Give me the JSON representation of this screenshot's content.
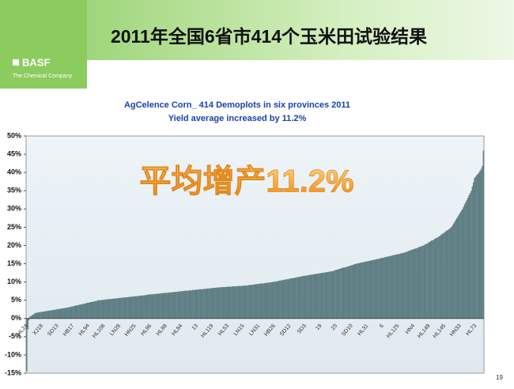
{
  "header": {
    "title": "2011年全国6省市414个玉米田试验结果",
    "logo": "BASF",
    "tagline": "The Chemical Company"
  },
  "page_number": "19",
  "chart_data": {
    "type": "bar",
    "title": "AgCelence Corn_ 414 Demoplots in six provinces 2011",
    "subtitle": "Yield average increased by 11.2%",
    "annotation": "平均增产11.2%",
    "color": "#5f7f84",
    "ylim": [
      -15,
      50
    ],
    "yticks": [
      {
        "value": -15,
        "label": "-15%"
      },
      {
        "value": -10,
        "label": "-10%"
      },
      {
        "value": -5,
        "label": "-5%"
      },
      {
        "value": 0,
        "label": "0%"
      },
      {
        "value": 5,
        "label": "5%"
      },
      {
        "value": 10,
        "label": "10%"
      },
      {
        "value": 15,
        "label": "15%"
      },
      {
        "value": 20,
        "label": "20%"
      },
      {
        "value": 25,
        "label": "25%"
      },
      {
        "value": 30,
        "label": "30%"
      },
      {
        "value": 35,
        "label": "35%"
      },
      {
        "value": 40,
        "label": "40%"
      },
      {
        "value": 45,
        "label": "45%"
      },
      {
        "value": 50,
        "label": "50%"
      }
    ],
    "categories": [
      "HL24",
      null,
      null,
      null,
      null,
      null,
      null,
      null,
      null,
      null,
      null,
      null,
      null,
      null,
      "XJ18",
      null,
      null,
      null,
      null,
      null,
      null,
      null,
      null,
      null,
      null,
      null,
      null,
      null,
      "SD13",
      null,
      null,
      null,
      null,
      null,
      null,
      null,
      null,
      null,
      null,
      null,
      null,
      null,
      "HB17",
      null,
      null,
      null,
      null,
      null,
      null,
      null,
      null,
      null,
      null,
      null,
      null,
      null,
      "HL94",
      null,
      null,
      null,
      null,
      null,
      null,
      null,
      null,
      null,
      null,
      null,
      null,
      null,
      "HL108",
      null,
      null,
      null,
      null,
      null,
      null,
      null,
      null,
      null,
      null,
      null,
      null,
      null,
      "LN28",
      null,
      null,
      null,
      null,
      null,
      null,
      null,
      null,
      null,
      null,
      null,
      null,
      null,
      "HN25",
      null,
      null,
      null,
      null,
      null,
      null,
      null,
      null,
      null,
      null,
      null,
      null,
      null,
      "HL86",
      null,
      null,
      null,
      null,
      null,
      null,
      null,
      null,
      null,
      null,
      null,
      null,
      null,
      "HL88",
      null,
      null,
      null,
      null,
      null,
      null,
      null,
      null,
      null,
      null,
      null,
      null,
      null,
      "HL84",
      null,
      null,
      null,
      null,
      null,
      null,
      null,
      null,
      null,
      null,
      null,
      null,
      null,
      "13",
      null,
      null,
      null,
      null,
      null,
      null,
      null,
      null,
      null,
      null,
      null,
      null,
      null,
      "HL119",
      null,
      null,
      null,
      null,
      null,
      null,
      null,
      null,
      null,
      null,
      null,
      null,
      null,
      "HL53",
      null,
      null,
      null,
      null,
      null,
      null,
      null,
      null,
      null,
      null,
      null,
      null,
      null,
      "LN15",
      null,
      null,
      null,
      null,
      null,
      null,
      null,
      null,
      null,
      null,
      null,
      null,
      null,
      "LN31",
      null,
      null,
      null,
      null,
      null,
      null,
      null,
      null,
      null,
      null,
      null,
      null,
      null,
      "HB26",
      null,
      null,
      null,
      null,
      null,
      null,
      null,
      null,
      null,
      null,
      null,
      null,
      null,
      "SD12",
      null,
      null,
      null,
      null,
      null,
      null,
      null,
      null,
      null,
      null,
      null,
      null,
      null,
      "SD3",
      null,
      null,
      null,
      null,
      null,
      null,
      null,
      null,
      null,
      null,
      null,
      null,
      null,
      "19",
      null,
      null,
      null,
      null,
      null,
      null,
      null,
      null,
      null,
      null,
      null,
      null,
      null,
      "23",
      null,
      null,
      null,
      null,
      null,
      null,
      null,
      null,
      null,
      null,
      null,
      null,
      null,
      "SD10",
      null,
      null,
      null,
      null,
      null,
      null,
      null,
      null,
      null,
      null,
      null,
      null,
      null,
      "HL31",
      null,
      null,
      null,
      null,
      null,
      null,
      null,
      null,
      null,
      null,
      null,
      null,
      null,
      "6",
      null,
      null,
      null,
      null,
      null,
      null,
      null,
      null,
      null,
      null,
      null,
      null,
      null,
      "HL125",
      null,
      null,
      null,
      null,
      null,
      null,
      null,
      null,
      null,
      null,
      null,
      null,
      null,
      "HN4",
      null,
      null,
      null,
      null,
      null,
      null,
      null,
      null,
      null,
      null,
      null,
      null,
      null,
      "HL149",
      null,
      null,
      null,
      null,
      null,
      null,
      null,
      null,
      null,
      null,
      null,
      null,
      null,
      "HL145",
      null,
      null,
      null,
      null,
      null,
      null,
      null,
      null,
      null,
      null,
      null,
      null,
      null,
      "HN33",
      null,
      null,
      null,
      null,
      null,
      null,
      null,
      null,
      null,
      null,
      null,
      null,
      null,
      "HL73",
      null,
      null,
      null,
      null,
      null,
      null,
      null
    ],
    "values": [
      -14.5,
      -3.0,
      -0.5,
      0.5,
      0.7,
      0.9,
      1.1,
      1.3,
      1.5,
      1.6,
      1.6,
      1.7,
      1.7,
      1.8,
      1.8,
      1.9,
      1.9,
      2.0,
      2.0,
      2.1,
      2.1,
      2.2,
      2.2,
      2.3,
      2.3,
      2.4,
      2.4,
      2.5,
      2.5,
      2.6,
      2.6,
      2.7,
      2.7,
      2.8,
      2.8,
      2.9,
      2.9,
      3.0,
      3.1,
      3.1,
      3.2,
      3.3,
      3.3,
      3.4,
      3.5,
      3.6,
      3.6,
      3.7,
      3.8,
      3.8,
      3.9,
      4.0,
      4.0,
      4.1,
      4.2,
      4.3,
      4.3,
      4.4,
      4.5,
      4.5,
      4.6,
      4.7,
      4.7,
      4.8,
      4.9,
      5.0,
      5.0,
      5.0,
      5.1,
      5.1,
      5.1,
      5.2,
      5.2,
      5.2,
      5.3,
      5.3,
      5.3,
      5.4,
      5.4,
      5.4,
      5.5,
      5.5,
      5.5,
      5.6,
      5.6,
      5.6,
      5.7,
      5.7,
      5.7,
      5.8,
      5.8,
      5.8,
      5.9,
      5.9,
      5.9,
      6.0,
      6.0,
      6.0,
      6.1,
      6.1,
      6.1,
      6.2,
      6.2,
      6.2,
      6.3,
      6.3,
      6.3,
      6.4,
      6.4,
      6.5,
      6.5,
      6.6,
      6.6,
      6.6,
      6.6,
      6.7,
      6.7,
      6.7,
      6.8,
      6.8,
      6.8,
      6.9,
      6.9,
      6.9,
      7.0,
      7.0,
      7.0,
      7.0,
      7.1,
      7.1,
      7.1,
      7.2,
      7.2,
      7.2,
      7.3,
      7.3,
      7.3,
      7.4,
      7.4,
      7.4,
      7.5,
      7.5,
      7.5,
      7.6,
      7.6,
      7.6,
      7.6,
      7.7,
      7.7,
      7.7,
      7.8,
      7.8,
      7.8,
      7.9,
      7.9,
      7.9,
      8.0,
      8.0,
      8.0,
      8.0,
      8.1,
      8.1,
      8.1,
      8.2,
      8.2,
      8.2,
      8.3,
      8.3,
      8.3,
      8.4,
      8.4,
      8.4,
      8.5,
      8.5,
      8.5,
      8.5,
      8.6,
      8.6,
      8.6,
      8.6,
      8.6,
      8.7,
      8.7,
      8.7,
      8.7,
      8.7,
      8.8,
      8.8,
      8.8,
      8.8,
      8.8,
      8.9,
      8.9,
      8.9,
      8.9,
      8.9,
      9.0,
      9.0,
      9.0,
      9.0,
      9.1,
      9.1,
      9.2,
      9.2,
      9.2,
      9.3,
      9.3,
      9.4,
      9.4,
      9.4,
      9.5,
      9.5,
      9.6,
      9.6,
      9.6,
      9.7,
      9.7,
      9.8,
      9.8,
      9.8,
      9.9,
      9.9,
      10.0,
      10.0,
      10.1,
      10.1,
      10.2,
      10.2,
      10.3,
      10.4,
      10.4,
      10.5,
      10.5,
      10.6,
      10.7,
      10.7,
      10.8,
      10.8,
      10.9,
      11.0,
      11.0,
      11.1,
      11.1,
      11.2,
      11.3,
      11.3,
      11.4,
      11.4,
      11.5,
      11.6,
      11.6,
      11.7,
      11.7,
      11.8,
      11.8,
      11.9,
      11.9,
      12.0,
      12.0,
      12.1,
      12.1,
      12.2,
      12.2,
      12.3,
      12.3,
      12.4,
      12.4,
      12.5,
      12.5,
      12.6,
      12.6,
      12.7,
      12.7,
      12.8,
      12.8,
      12.9,
      12.9,
      13.0,
      13.1,
      13.2,
      13.3,
      13.4,
      13.5,
      13.6,
      13.7,
      13.8,
      13.9,
      14.0,
      14.0,
      14.1,
      14.2,
      14.3,
      14.4,
      14.5,
      14.6,
      14.7,
      14.8,
      14.9,
      15.0,
      15.1,
      15.1,
      15.2,
      15.3,
      15.3,
      15.4,
      15.5,
      15.5,
      15.6,
      15.7,
      15.7,
      15.8,
      15.9,
      15.9,
      16.0,
      16.1,
      16.1,
      16.2,
      16.3,
      16.3,
      16.4,
      16.5,
      16.6,
      16.6,
      16.7,
      16.8,
      16.9,
      16.9,
      17.0,
      17.1,
      17.1,
      17.2,
      17.3,
      17.4,
      17.4,
      17.5,
      17.6,
      17.6,
      17.7,
      17.8,
      17.9,
      17.9,
      18.0,
      18.1,
      18.2,
      18.3,
      18.4,
      18.6,
      18.7,
      18.8,
      18.9,
      19.0,
      19.1,
      19.2,
      19.3,
      19.4,
      19.6,
      19.7,
      19.8,
      19.9,
      20.0,
      20.2,
      20.4,
      20.5,
      20.7,
      20.9,
      21.1,
      21.3,
      21.4,
      21.6,
      21.8,
      22.0,
      22.1,
      22.3,
      22.5,
      22.7,
      23.0,
      23.2,
      23.4,
      23.6,
      23.9,
      24.1,
      24.3,
      24.5,
      24.8,
      25.0,
      25.5,
      26.0,
      26.5,
      27.0,
      27.5,
      28.0,
      28.5,
      29.0,
      29.5,
      30.0,
      30.6,
      31.3,
      31.9,
      32.5,
      33.1,
      33.8,
      34.4,
      35.0,
      36.2,
      37.3,
      38.5,
      38.9,
      39.3,
      39.6,
      40.0,
      40.5,
      41.0,
      41.8,
      46.0
    ]
  }
}
